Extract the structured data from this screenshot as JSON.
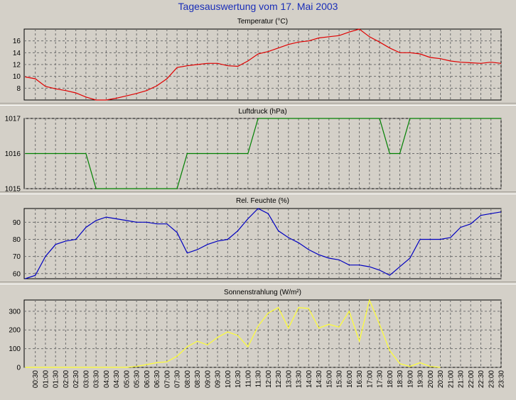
{
  "title": "Tagesauswertung vom 17. Mai 2003",
  "time_labels": [
    "00:30",
    "01:00",
    "01:30",
    "02:00",
    "02:30",
    "03:00",
    "03:30",
    "04:00",
    "04:30",
    "05:00",
    "05:30",
    "06:00",
    "06:30",
    "07:00",
    "07:30",
    "08:00",
    "08:30",
    "09:00",
    "09:30",
    "10:00",
    "10:30",
    "11:00",
    "11:30",
    "12:00",
    "12:30",
    "13:00",
    "13:30",
    "14:00",
    "14:30",
    "15:00",
    "15:30",
    "16:00",
    "16:30",
    "17:00",
    "17:30",
    "18:00",
    "18:30",
    "19:00",
    "19:30",
    "20:00",
    "20:30",
    "21:00",
    "21:30",
    "22:00",
    "22:30",
    "23:00",
    "23:30"
  ],
  "colors": {
    "temperature": "#e00000",
    "pressure": "#008000",
    "humidity": "#0000c0",
    "radiation": "#ffff33",
    "title": "#1a2eb8"
  },
  "chart_data": [
    {
      "type": "line",
      "title": "Temperatur (°C)",
      "x": [
        0.0,
        0.5,
        1.0,
        1.5,
        2.0,
        2.5,
        3.0,
        3.5,
        4.0,
        4.5,
        5.0,
        5.5,
        6.0,
        6.5,
        7.0,
        7.5,
        8.0,
        8.5,
        9.0,
        9.5,
        10.0,
        10.5,
        11.0,
        11.5,
        12.0,
        12.5,
        13.0,
        13.5,
        14.0,
        14.5,
        15.0,
        15.5,
        16.0,
        16.5,
        17.0,
        17.5,
        18.0,
        18.5,
        19.0,
        19.5,
        20.0,
        20.5,
        21.0,
        21.5,
        22.0,
        22.5,
        23.0,
        23.5
      ],
      "values": [
        9.9,
        9.6,
        8.3,
        7.9,
        7.6,
        7.2,
        6.5,
        6.0,
        6.0,
        6.3,
        6.7,
        7.1,
        7.6,
        8.4,
        9.6,
        11.5,
        11.8,
        12.0,
        12.2,
        12.2,
        11.8,
        11.7,
        12.6,
        13.8,
        14.2,
        14.8,
        15.4,
        15.8,
        16.0,
        16.5,
        16.7,
        16.9,
        17.5,
        18.0,
        16.7,
        15.8,
        14.8,
        14.0,
        14.0,
        13.8,
        13.2,
        13.0,
        12.6,
        12.4,
        12.3,
        12.2,
        12.4,
        12.2
      ],
      "yticks": [
        8,
        10,
        12,
        14,
        16
      ],
      "ylim": [
        6,
        18
      ],
      "grid": true,
      "color": "#e00000"
    },
    {
      "type": "line",
      "title": "Luftdruck (hPa)",
      "x": [
        0.0,
        3.0,
        3.5,
        7.5,
        8.0,
        11.0,
        11.5,
        17.5,
        18.0,
        18.5,
        19.0,
        23.5
      ],
      "values": [
        1016,
        1016,
        1015,
        1015,
        1016,
        1016,
        1017,
        1017,
        1016,
        1016,
        1017,
        1017
      ],
      "yticks": [
        1015,
        1016,
        1017
      ],
      "ylim": [
        1015,
        1017
      ],
      "grid": true,
      "color": "#008000"
    },
    {
      "type": "line",
      "title": "Rel. Feuchte (%)",
      "x": [
        0.0,
        0.5,
        1.0,
        1.5,
        2.0,
        2.5,
        3.0,
        3.5,
        4.0,
        4.5,
        5.0,
        5.5,
        6.0,
        6.5,
        7.0,
        7.5,
        8.0,
        8.5,
        9.0,
        9.5,
        10.0,
        10.5,
        11.0,
        11.5,
        12.0,
        12.5,
        13.0,
        13.5,
        14.0,
        14.5,
        15.0,
        15.5,
        16.0,
        16.5,
        17.0,
        17.5,
        18.0,
        18.5,
        19.0,
        19.5,
        20.0,
        20.5,
        21.0,
        21.5,
        22.0,
        22.5,
        23.0,
        23.5
      ],
      "values": [
        57,
        59,
        70,
        77,
        79,
        80,
        87,
        91,
        93,
        92,
        91,
        90,
        90,
        89,
        89,
        84,
        72,
        74,
        77,
        79,
        80,
        85,
        92,
        98,
        95,
        85,
        81,
        78,
        74,
        71,
        69,
        68,
        65,
        65,
        64,
        62,
        59,
        64,
        69,
        80,
        80,
        80,
        81,
        87,
        89,
        94,
        95,
        96
      ],
      "yticks": [
        60,
        70,
        80,
        90
      ],
      "ylim": [
        57,
        98
      ],
      "grid": true,
      "color": "#0000c0"
    },
    {
      "type": "line",
      "title": "Sonnenstrahlung (W/m²)",
      "x": [
        0.0,
        0.5,
        1.0,
        1.5,
        2.0,
        2.5,
        3.0,
        3.5,
        4.0,
        4.5,
        5.0,
        5.5,
        6.0,
        6.5,
        7.0,
        7.5,
        8.0,
        8.5,
        9.0,
        9.5,
        10.0,
        10.5,
        11.0,
        11.5,
        12.0,
        12.5,
        13.0,
        13.5,
        14.0,
        14.5,
        15.0,
        15.5,
        16.0,
        16.5,
        17.0,
        17.5,
        18.0,
        18.5,
        19.0,
        19.5,
        20.0,
        20.5
      ],
      "values": [
        0,
        0,
        0,
        0,
        0,
        0,
        0,
        0,
        0,
        0,
        0,
        5,
        15,
        25,
        30,
        60,
        110,
        140,
        120,
        160,
        190,
        170,
        110,
        220,
        290,
        320,
        210,
        320,
        315,
        210,
        230,
        215,
        300,
        140,
        360,
        230,
        90,
        20,
        5,
        25,
        5,
        0
      ],
      "yticks": [
        0,
        100,
        200,
        300
      ],
      "ylim": [
        0,
        360
      ],
      "grid": true,
      "color": "#ffff33"
    }
  ]
}
